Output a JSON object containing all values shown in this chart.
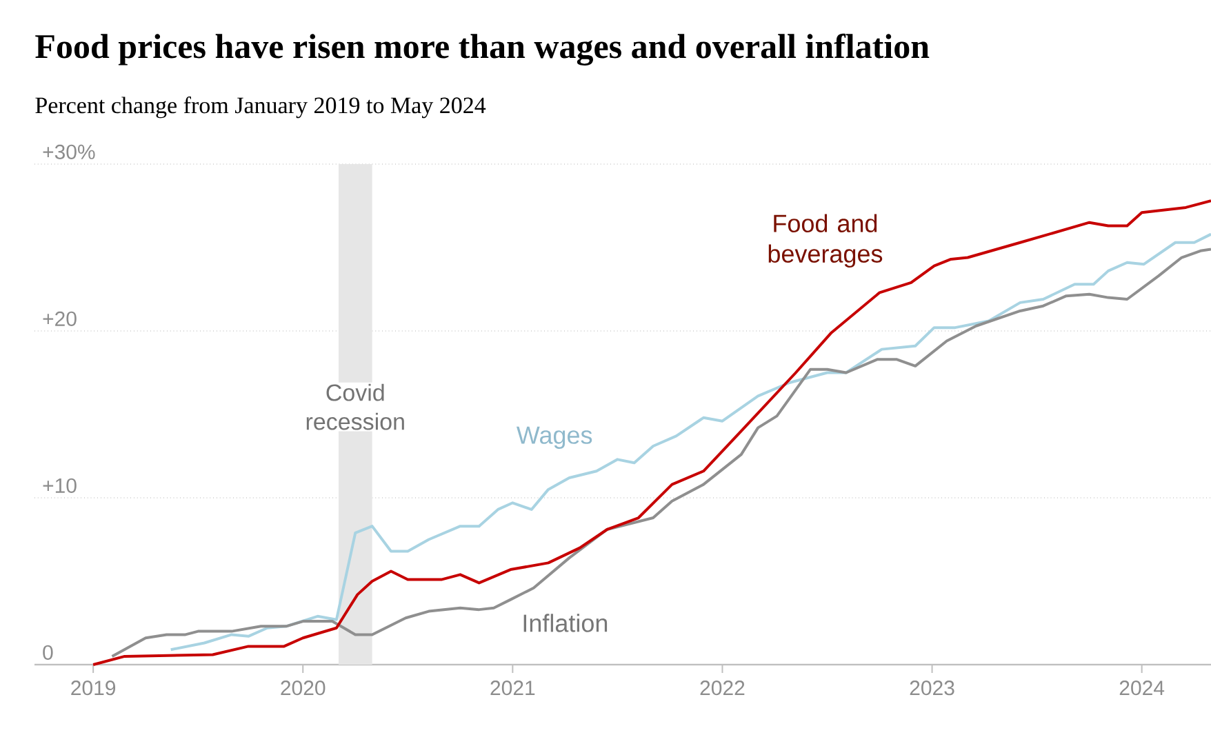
{
  "chart_data": {
    "type": "line",
    "title": "Food prices have risen more than wages and overall inflation",
    "subtitle": "Percent change from January 2019 to May 2024",
    "xlim": [
      2018.72,
      2024.33
    ],
    "xticks": [
      2019,
      2020,
      2021,
      2022,
      2023,
      2024
    ],
    "ylim": [
      0,
      30
    ],
    "yticks": [
      {
        "value": 0,
        "label": "0"
      },
      {
        "value": 10,
        "label": "+10"
      },
      {
        "value": 20,
        "label": "+20"
      },
      {
        "value": 30,
        "label": "+30%"
      }
    ],
    "grid": "y",
    "bands": [
      {
        "axis": "x",
        "from": 2020.17,
        "to": 2020.33,
        "label": "Covid recession",
        "color": "#e6e6e6"
      }
    ],
    "series": [
      {
        "name": "Food and beverages",
        "color": "#c70000",
        "x": [
          2019.0,
          2019.15,
          2019.57,
          2019.74,
          2019.91,
          2020.0,
          2020.16,
          2020.26,
          2020.33,
          2020.42,
          2020.5,
          2020.66,
          2020.75,
          2020.84,
          2020.99,
          2021.17,
          2021.32,
          2021.45,
          2021.6,
          2021.76,
          2021.91,
          2022.09,
          2022.35,
          2022.52,
          2022.75,
          2022.9,
          2023.01,
          2023.09,
          2023.17,
          2023.42,
          2023.75,
          2023.84,
          2023.93,
          2024.0,
          2024.21,
          2024.33
        ],
        "values": [
          0,
          0.5,
          0.6,
          1.1,
          1.1,
          1.6,
          2.2,
          4.2,
          5.0,
          5.6,
          5.1,
          5.1,
          5.4,
          4.9,
          5.7,
          6.1,
          7.0,
          8.1,
          8.8,
          10.8,
          11.6,
          14.0,
          17.5,
          19.9,
          22.3,
          22.9,
          23.9,
          24.3,
          24.4,
          25.3,
          26.5,
          26.3,
          26.3,
          27.1,
          27.4,
          27.8
        ]
      },
      {
        "name": "Wages",
        "color": "#a8d3e2",
        "x": [
          2019.37,
          2019.53,
          2019.66,
          2019.74,
          2019.83,
          2019.92,
          2020.07,
          2020.16,
          2020.25,
          2020.33,
          2020.42,
          2020.5,
          2020.6,
          2020.75,
          2020.84,
          2020.93,
          2021.0,
          2021.09,
          2021.17,
          2021.27,
          2021.4,
          2021.5,
          2021.58,
          2021.67,
          2021.78,
          2021.91,
          2022.0,
          2022.17,
          2022.32,
          2022.5,
          2022.59,
          2022.76,
          2022.92,
          2023.01,
          2023.11,
          2023.27,
          2023.42,
          2023.53,
          2023.68,
          2023.77,
          2023.84,
          2023.93,
          2024.01,
          2024.16,
          2024.25,
          2024.33
        ],
        "values": [
          0.9,
          1.3,
          1.8,
          1.7,
          2.2,
          2.3,
          2.9,
          2.7,
          7.9,
          8.3,
          6.8,
          6.8,
          7.5,
          8.3,
          8.3,
          9.3,
          9.7,
          9.3,
          10.5,
          11.2,
          11.6,
          12.3,
          12.1,
          13.1,
          13.7,
          14.8,
          14.6,
          16.1,
          16.9,
          17.5,
          17.5,
          18.9,
          19.1,
          20.2,
          20.2,
          20.6,
          21.7,
          21.9,
          22.8,
          22.8,
          23.6,
          24.1,
          24.0,
          25.3,
          25.3,
          25.8
        ]
      },
      {
        "name": "Inflation",
        "color": "#8f8f8f",
        "x": [
          2019.09,
          2019.25,
          2019.35,
          2019.44,
          2019.5,
          2019.66,
          2019.8,
          2019.92,
          2020.0,
          2020.14,
          2020.25,
          2020.33,
          2020.49,
          2020.6,
          2020.75,
          2020.84,
          2020.91,
          2020.99,
          2021.1,
          2021.27,
          2021.45,
          2021.67,
          2021.76,
          2021.91,
          2022.09,
          2022.17,
          2022.26,
          2022.42,
          2022.5,
          2022.59,
          2022.74,
          2022.83,
          2022.92,
          2023.07,
          2023.21,
          2023.42,
          2023.53,
          2023.64,
          2023.75,
          2023.84,
          2023.93,
          2024.08,
          2024.19,
          2024.28,
          2024.33
        ],
        "values": [
          0.5,
          1.6,
          1.8,
          1.8,
          2.0,
          2.0,
          2.3,
          2.3,
          2.6,
          2.6,
          1.8,
          1.8,
          2.8,
          3.2,
          3.4,
          3.3,
          3.4,
          3.9,
          4.6,
          6.4,
          8.1,
          8.8,
          9.8,
          10.8,
          12.6,
          14.2,
          14.9,
          17.7,
          17.7,
          17.5,
          18.3,
          18.3,
          17.9,
          19.4,
          20.3,
          21.2,
          21.5,
          22.1,
          22.2,
          22.0,
          21.9,
          23.3,
          24.4,
          24.8,
          24.9
        ]
      }
    ]
  }
}
